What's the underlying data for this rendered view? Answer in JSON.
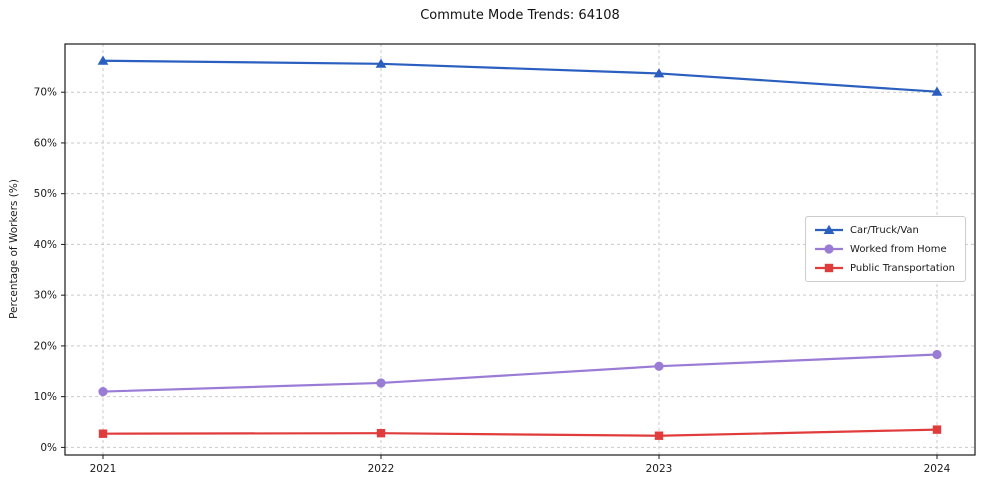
{
  "title": "Commute Mode Trends: 64108",
  "chart_data": {
    "type": "line",
    "title": "Commute Mode Trends: 64108",
    "xlabel": "",
    "ylabel": "Percentage of Workers (%)",
    "categories": [
      "2021",
      "2022",
      "2023",
      "2024"
    ],
    "y_ticks": [
      0,
      10,
      20,
      30,
      40,
      50,
      60,
      70
    ],
    "y_tick_suffix": "%",
    "ylim": [
      -1.5,
      79.5
    ],
    "grid": "dashed-both",
    "grid_color": "#c9c9c9",
    "legend_position": "center-right",
    "series": [
      {
        "name": "Car/Truck/Van",
        "color": "#2a5fc0",
        "marker": "triangle",
        "values": [
          76.2,
          75.6,
          73.7,
          70.1
        ]
      },
      {
        "name": "Worked from Home",
        "color": "#9a7bd6",
        "marker": "circle",
        "values": [
          11.0,
          12.7,
          16.0,
          18.3
        ]
      },
      {
        "name": "Public Transportation",
        "color": "#e03c3c",
        "marker": "square",
        "values": [
          2.7,
          2.8,
          2.3,
          3.5
        ]
      }
    ]
  }
}
